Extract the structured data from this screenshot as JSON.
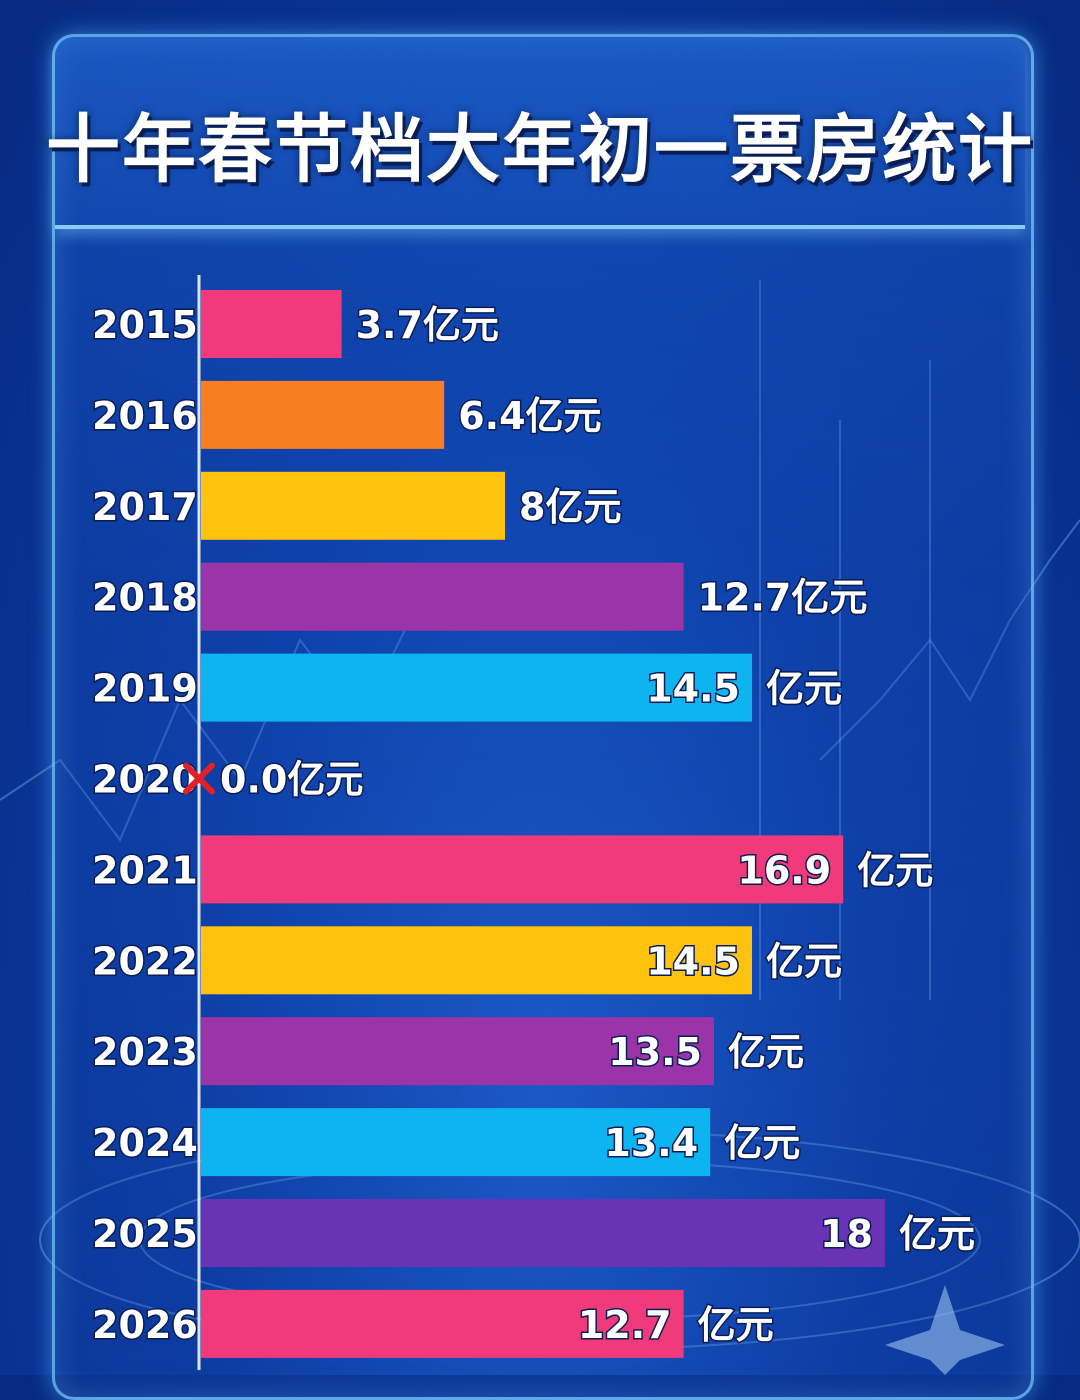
{
  "chart_data": {
    "type": "bar",
    "orientation": "horizontal",
    "title": "十年春节档大年初一票房统计",
    "unit": "亿元",
    "categories": [
      "2015",
      "2016",
      "2017",
      "2018",
      "2019",
      "2020",
      "2021",
      "2022",
      "2023",
      "2024",
      "2025",
      "2026"
    ],
    "values": [
      3.7,
      6.4,
      8,
      12.7,
      14.5,
      0.0,
      16.9,
      14.5,
      13.5,
      13.4,
      18,
      12.7
    ],
    "value_labels": [
      "3.7",
      "6.4",
      "8",
      "12.7",
      "14.5",
      "0.0",
      "16.9",
      "14.5",
      "13.5",
      "13.4",
      "18",
      "12.7"
    ],
    "bar_colors": [
      "#f03a7c",
      "#f97d22",
      "#ffc20e",
      "#9b34a8",
      "#0db4ef",
      "#f03a7c",
      "#f03a7c",
      "#ffc20e",
      "#9b34a8",
      "#0db4ef",
      "#6a32b4",
      "#f03a7c"
    ],
    "label_inside_bar": [
      false,
      false,
      false,
      false,
      true,
      false,
      true,
      true,
      true,
      true,
      true,
      true
    ],
    "cancelled_marker": {
      "year": "2020",
      "icon": "red-x-icon",
      "color": "#e0202a"
    },
    "xlim": [
      0,
      18
    ],
    "grid": false,
    "legend": "none"
  }
}
